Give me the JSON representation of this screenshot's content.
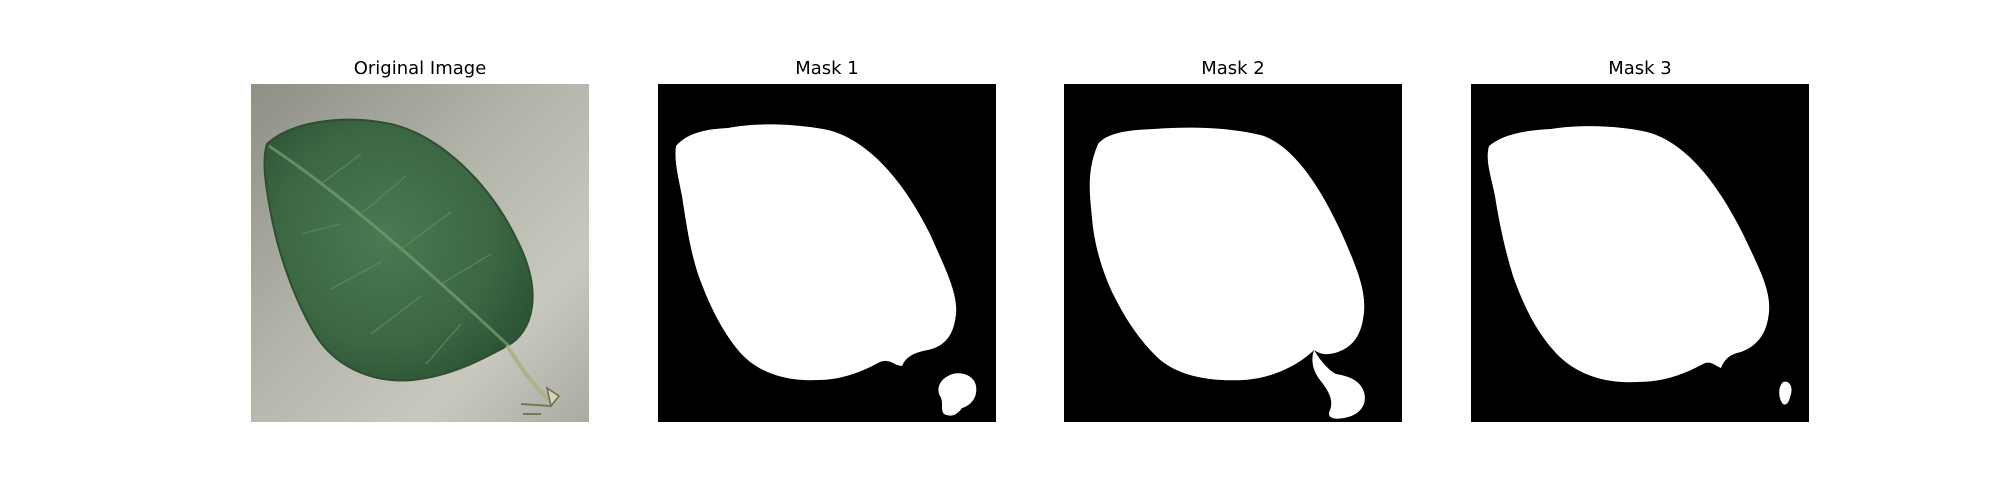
{
  "panels": [
    {
      "title": "Original Image",
      "image": "photo of a green serrated leaf with stem on a grey background"
    },
    {
      "title": "Mask 1",
      "image": "binary segmentation mask: white leaf shape on black"
    },
    {
      "title": "Mask 2",
      "image": "binary segmentation mask: white leaf shape with stem on black"
    },
    {
      "title": "Mask 3",
      "image": "binary segmentation mask: white leaf shape on black"
    }
  ],
  "colors": {
    "mask_background": "#000000",
    "mask_foreground": "#ffffff",
    "leaf": "#3e6b45",
    "photo_background": "#b8b8ae"
  }
}
